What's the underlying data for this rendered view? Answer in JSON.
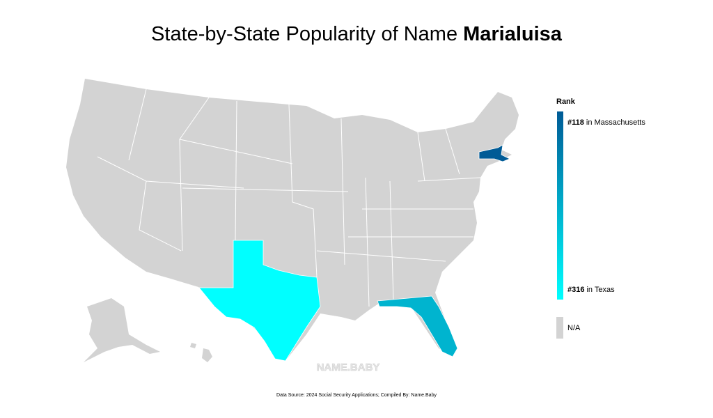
{
  "header": {
    "title": "State-by-State Popularity of Name",
    "name": "Marialuisa"
  },
  "map": {
    "na_color": "#d3d3d3",
    "scale": {
      "colors": [
        "#005b96",
        "#00ffff"
      ],
      "min": 118,
      "max": 316
    },
    "states": [
      {
        "key": "MA",
        "rank": 118
      },
      {
        "key": "TX",
        "rank": 316
      },
      {
        "key": "FL",
        "rank": 225
      }
    ]
  },
  "legend": {
    "title": "Rank",
    "top": {
      "label": "#118",
      "text": "in Massachusetts"
    },
    "bottom": {
      "label": "#316",
      "text": "in Texas"
    },
    "na": "N/A"
  },
  "watermark": "NAME.BABY",
  "footer": "Data Source: 2024 Social Security Applications; Compiled By: Name.Baby"
}
